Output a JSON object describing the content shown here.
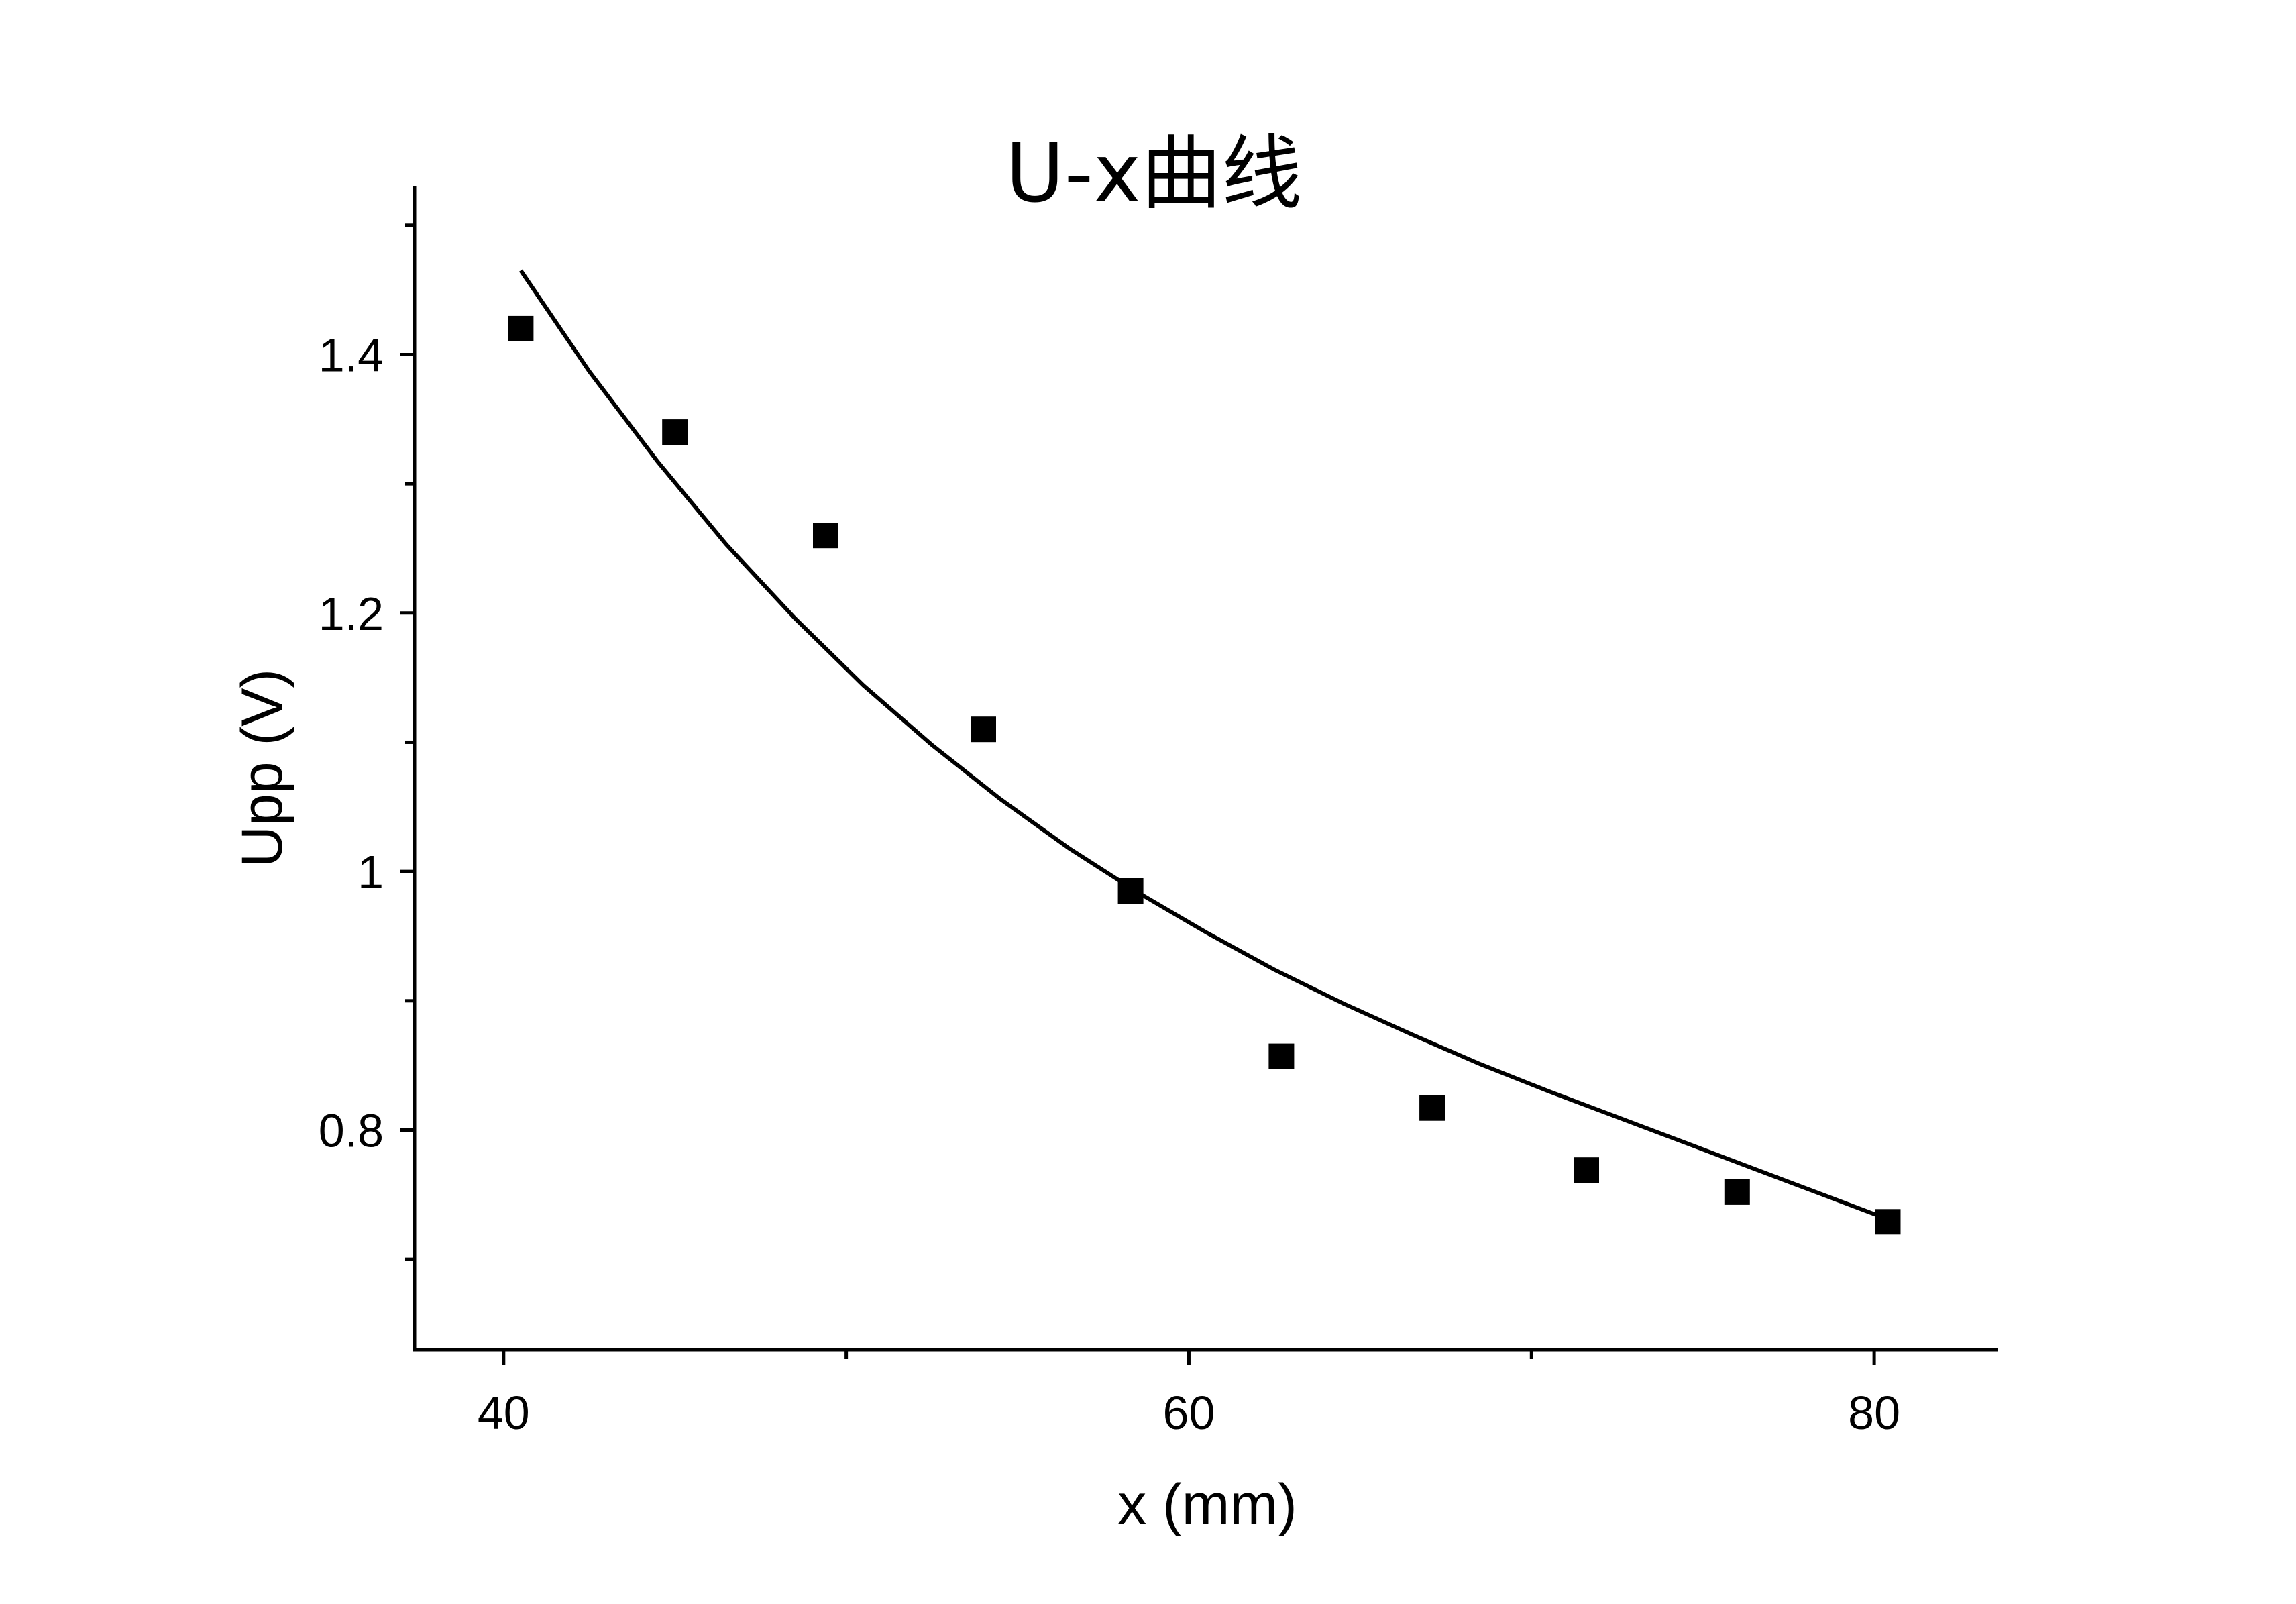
{
  "chart_data": {
    "type": "scatter",
    "title": "U-x曲线",
    "xlabel": "x (mm)",
    "ylabel": "Upp (V)",
    "xlim": [
      37.4,
      83.6
    ],
    "ylim": [
      0.63,
      1.53
    ],
    "x_ticks": [
      40,
      50,
      60,
      70,
      80
    ],
    "x_tick_labels": [
      "40",
      "",
      "60",
      "",
      "80"
    ],
    "y_ticks": [
      0.7,
      0.8,
      0.9,
      1.0,
      1.1,
      1.2,
      1.3,
      1.4,
      1.5
    ],
    "y_tick_labels": [
      "",
      "0.8",
      "",
      "1",
      "",
      "1.2",
      "",
      "1.4",
      ""
    ],
    "grid": false,
    "points": {
      "x": [
        40.5,
        45.0,
        49.4,
        54.0,
        58.3,
        62.7,
        67.1,
        71.6,
        76.0,
        80.4
      ],
      "y": [
        1.42,
        1.34,
        1.26,
        1.11,
        0.985,
        0.857,
        0.817,
        0.769,
        0.752,
        0.729
      ]
    },
    "fit": {
      "x": [
        40.5,
        42.5,
        44.5,
        46.5,
        48.5,
        50.5,
        52.5,
        54.5,
        56.5,
        58.5,
        60.5,
        62.5,
        64.5,
        66.5,
        68.5,
        70.5,
        72.5,
        74.5,
        76.5,
        78.5,
        80.5
      ],
      "y": [
        1.465,
        1.387,
        1.317,
        1.253,
        1.196,
        1.144,
        1.098,
        1.056,
        1.018,
        0.984,
        0.953,
        0.924,
        0.898,
        0.874,
        0.851,
        0.83,
        0.81,
        0.79,
        0.77,
        0.75,
        0.73
      ]
    },
    "colors": {
      "marker": "#000000",
      "line": "#000000",
      "axis": "#000000"
    }
  }
}
